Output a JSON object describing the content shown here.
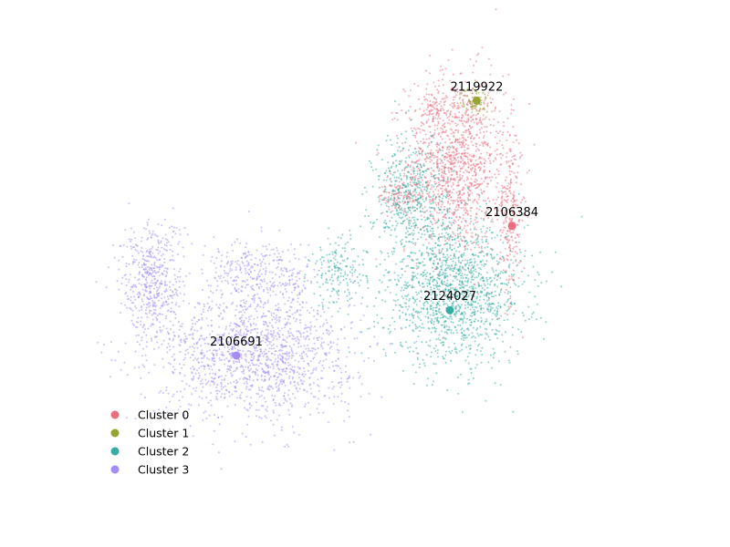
{
  "chart_data": {
    "type": "scatter",
    "title": "",
    "xlabel": "",
    "ylabel": "",
    "axes_visible": false,
    "grid": false,
    "legend_placement": "lower-left",
    "xlim": [
      -8,
      12
    ],
    "ylim": [
      -3,
      12
    ],
    "series": [
      {
        "name": "Cluster 0",
        "color": "#e8707e",
        "regions": [
          {
            "cx": 5.3,
            "cy": 8.5,
            "sx": 1.2,
            "sy": 2.2,
            "n": 1300
          },
          {
            "cx": 7.3,
            "cy": 6.7,
            "sx": 0.3,
            "sy": 2.1,
            "n": 260
          },
          {
            "cx": 3.3,
            "cy": 7.3,
            "sx": 0.55,
            "sy": 0.35,
            "n": 110
          },
          {
            "cx": 4.5,
            "cy": 10.5,
            "sx": 0.3,
            "sy": 0.4,
            "n": 60
          }
        ]
      },
      {
        "name": "Cluster 1",
        "color": "#97a431",
        "regions": [
          {
            "cx": 6.0,
            "cy": 10.8,
            "sx": 0.35,
            "sy": 0.35,
            "n": 70
          }
        ]
      },
      {
        "name": "Cluster 2",
        "color": "#36ada4",
        "regions": [
          {
            "cx": 5.3,
            "cy": 3.8,
            "sx": 1.7,
            "sy": 1.7,
            "n": 1400
          },
          {
            "cx": 3.7,
            "cy": 7.2,
            "sx": 0.9,
            "sy": 1.6,
            "n": 550
          },
          {
            "cx": 1.0,
            "cy": 4.5,
            "sx": 0.7,
            "sy": 0.8,
            "n": 170
          }
        ]
      },
      {
        "name": "Cluster 3",
        "color": "#a48cf4",
        "regions": [
          {
            "cx": -2.0,
            "cy": 1.6,
            "sx": 2.4,
            "sy": 1.6,
            "n": 1500
          },
          {
            "cx": -5.8,
            "cy": 4.2,
            "sx": 0.75,
            "sy": 1.5,
            "n": 500
          },
          {
            "cx": -1.8,
            "cy": 4.5,
            "sx": 1.4,
            "sy": 0.8,
            "n": 320
          }
        ]
      }
    ],
    "highlighted_points": [
      {
        "label": "2119922",
        "series": "Cluster 1",
        "x": 6.08,
        "y": 10.82
      },
      {
        "label": "2106384",
        "series": "Cluster 0",
        "x": 7.37,
        "y": 6.24
      },
      {
        "label": "2124027",
        "series": "Cluster 2",
        "x": 5.1,
        "y": 3.16
      },
      {
        "label": "2106691",
        "series": "Cluster 3",
        "x": -2.7,
        "y": 1.5
      }
    ]
  }
}
